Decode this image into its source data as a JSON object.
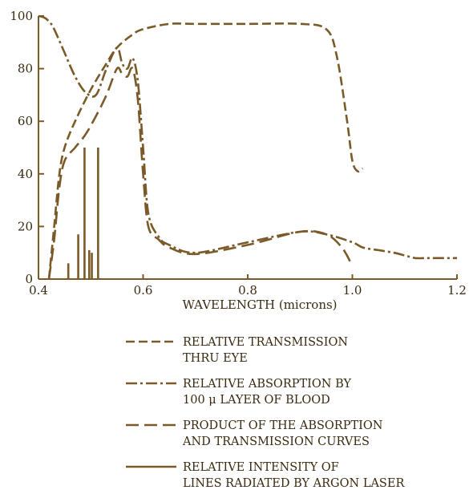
{
  "colors": {
    "ink": "#7a5a28",
    "text": "#3a2a10",
    "background": "#ffffff"
  },
  "chart_data": {
    "type": "line",
    "title": "",
    "xlabel": "WAVELENGTH (microns)",
    "ylabel": "",
    "xlim": [
      0.4,
      1.2
    ],
    "ylim": [
      0,
      100
    ],
    "x_ticks": [
      "0.4",
      "0.6",
      "0.8",
      "1.0",
      "1.2"
    ],
    "y_ticks": [
      "0",
      "20",
      "40",
      "60",
      "80",
      "100"
    ],
    "grid": false,
    "legend_position": "bottom",
    "series": [
      {
        "name": "RELATIVE TRANSMISSION THRU EYE",
        "style": "dash-short",
        "x": [
          0.42,
          0.43,
          0.44,
          0.45,
          0.47,
          0.5,
          0.53,
          0.55,
          0.58,
          0.6,
          0.65,
          0.7,
          0.8,
          0.9,
          0.95,
          0.97,
          0.99,
          1.0,
          1.01,
          1.02
        ],
        "y": [
          0,
          20,
          40,
          50,
          60,
          72,
          82,
          88,
          93,
          95,
          97,
          97,
          97,
          97,
          95,
          85,
          60,
          45,
          41,
          42
        ]
      },
      {
        "name": "RELATIVE ABSORPTION BY 100 μ LAYER OF BLOOD",
        "style": "dash-dot",
        "x": [
          0.4,
          0.41,
          0.42,
          0.43,
          0.45,
          0.47,
          0.49,
          0.51,
          0.53,
          0.55,
          0.56,
          0.57,
          0.58,
          0.59,
          0.6,
          0.61,
          0.63,
          0.65,
          0.7,
          0.8,
          0.9,
          0.95,
          1.0,
          1.02,
          1.05,
          1.08,
          1.1,
          1.12,
          1.14,
          1.16,
          1.18,
          1.2
        ],
        "y": [
          100,
          99.5,
          98,
          95,
          86,
          77,
          71,
          70,
          80,
          88,
          82,
          80,
          84,
          75,
          50,
          25,
          16,
          13,
          10,
          14,
          18,
          17,
          14,
          12,
          11,
          10,
          9,
          8,
          8,
          8,
          8,
          8
        ]
      },
      {
        "name": "PRODUCT OF THE ABSORPTION AND TRANSMISSION CURVES",
        "style": "dash-long",
        "x": [
          0.42,
          0.43,
          0.44,
          0.45,
          0.47,
          0.49,
          0.51,
          0.53,
          0.55,
          0.56,
          0.57,
          0.58,
          0.59,
          0.6,
          0.61,
          0.63,
          0.65,
          0.7,
          0.8,
          0.9,
          0.95,
          0.98,
          1.0
        ],
        "y": [
          0,
          15,
          35,
          45,
          50,
          55,
          62,
          70,
          80,
          78,
          77,
          80,
          68,
          40,
          20,
          15,
          12,
          9.5,
          13,
          18,
          17,
          12,
          5
        ]
      },
      {
        "name": "RELATIVE INTENSITY OF LINES RADIATED BY ARGON LASER",
        "style": "solid",
        "x": [
          0.457,
          0.476,
          0.488,
          0.497,
          0.502,
          0.514
        ],
        "y": [
          6,
          17,
          50,
          11,
          10,
          50
        ]
      }
    ]
  },
  "legend": [
    {
      "line1": "RELATIVE TRANSMISSION",
      "line2": "THRU EYE",
      "style": "dash-short"
    },
    {
      "line1": "RELATIVE ABSORPTION BY",
      "line2": "100 μ LAYER OF BLOOD",
      "style": "dash-dot"
    },
    {
      "line1": "PRODUCT OF THE ABSORPTION",
      "line2": "AND TRANSMISSION CURVES",
      "style": "dash-long"
    },
    {
      "line1": "RELATIVE INTENSITY OF",
      "line2": "LINES RADIATED BY ARGON LASER",
      "style": "solid"
    }
  ]
}
